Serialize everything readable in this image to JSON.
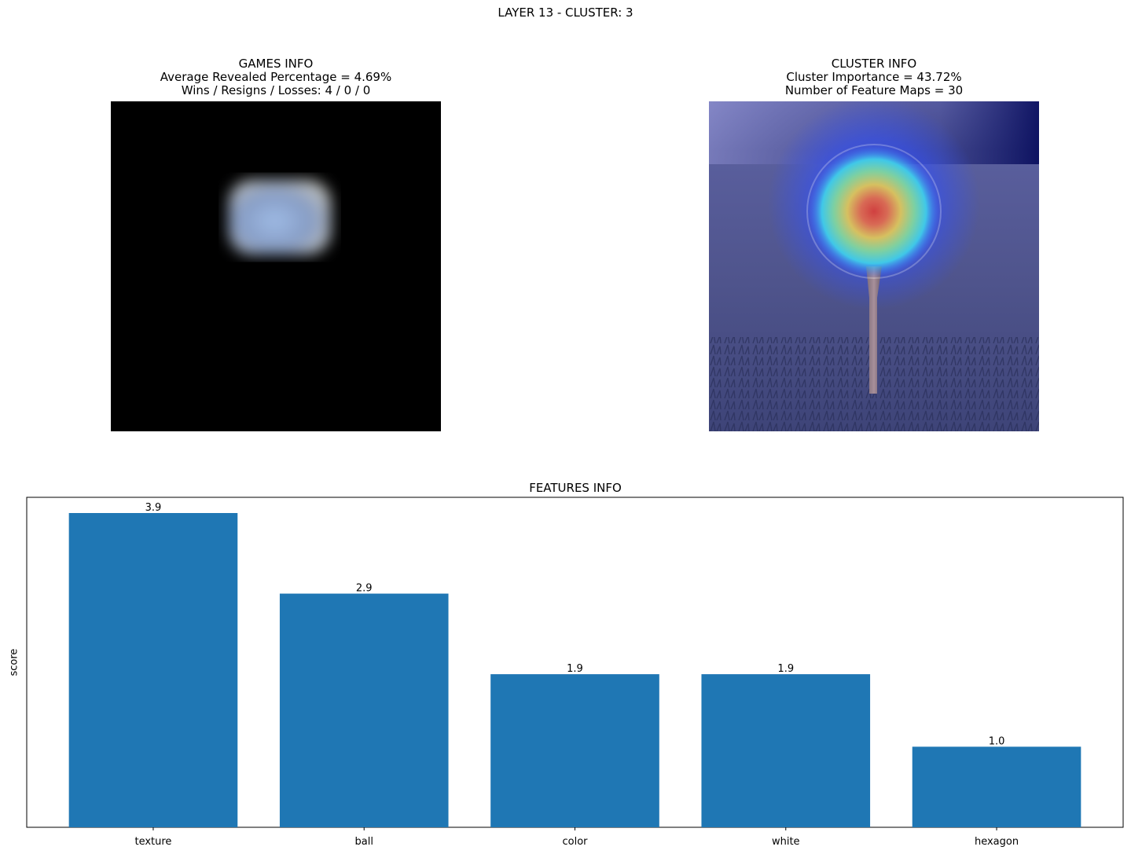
{
  "suptitle": "LAYER 13 - CLUSTER: 3",
  "games_panel": {
    "title": "GAMES INFO",
    "line1": "Average Revealed Percentage = 4.69%",
    "line2": "Wins / Resigns / Losses: 4 / 0 / 0"
  },
  "cluster_panel": {
    "title": "CLUSTER INFO",
    "line1": "Cluster Importance = 43.72%",
    "line2": "Number of Feature Maps = 30"
  },
  "colors": {
    "bar": "#1f77b4"
  },
  "chart_data": {
    "type": "bar",
    "title": "FEATURES INFO",
    "xlabel": "",
    "ylabel": "score",
    "categories": [
      "texture",
      "ball",
      "color",
      "white",
      "hexagon"
    ],
    "values": [
      3.9,
      2.9,
      1.9,
      1.9,
      1.0
    ],
    "data_labels": [
      "3.9",
      "2.9",
      "1.9",
      "1.9",
      "1.0"
    ],
    "ylim": [
      0,
      4.095
    ],
    "yticks_visible": false,
    "grid": false
  }
}
